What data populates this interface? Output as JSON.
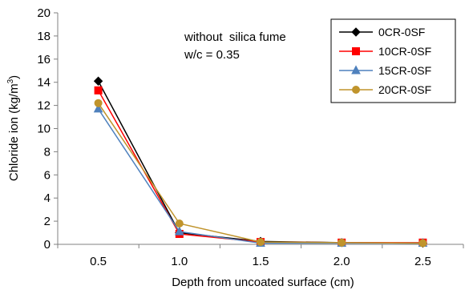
{
  "chart_data": {
    "type": "line",
    "xlabel": "Depth from uncoated surface (cm)",
    "ylabel": "Chloride ion (kg/m³)",
    "ylabel_base": "Chloride ion (kg/m",
    "ylabel_sup": "3",
    "ylabel_end": ")",
    "categories": [
      "0.5",
      "1.0",
      "1.5",
      "2.0",
      "2.5"
    ],
    "ylim": [
      0,
      20
    ],
    "yticks": [
      "0",
      "2",
      "4",
      "6",
      "8",
      "10",
      "12",
      "14",
      "16",
      "18",
      "20"
    ],
    "grid": false,
    "legend_position": "top-right",
    "annotations": [
      "without  silica fume",
      "w/c = 0.35"
    ],
    "series": [
      {
        "name": "0CR-0SF",
        "color": "#000000",
        "marker": "diamond",
        "values": [
          14.1,
          1.0,
          0.25,
          0.15,
          0.1
        ]
      },
      {
        "name": "10CR-0SF",
        "color": "#ff0000",
        "marker": "square",
        "values": [
          13.3,
          0.9,
          0.2,
          0.15,
          0.15
        ]
      },
      {
        "name": "15CR-0SF",
        "color": "#4f81bd",
        "marker": "triangle",
        "values": [
          11.7,
          1.1,
          0.1,
          0.1,
          0.1
        ]
      },
      {
        "name": "20CR-0SF",
        "color": "#c0942c",
        "marker": "circle",
        "values": [
          12.2,
          1.8,
          0.2,
          0.15,
          0.1
        ]
      }
    ]
  }
}
